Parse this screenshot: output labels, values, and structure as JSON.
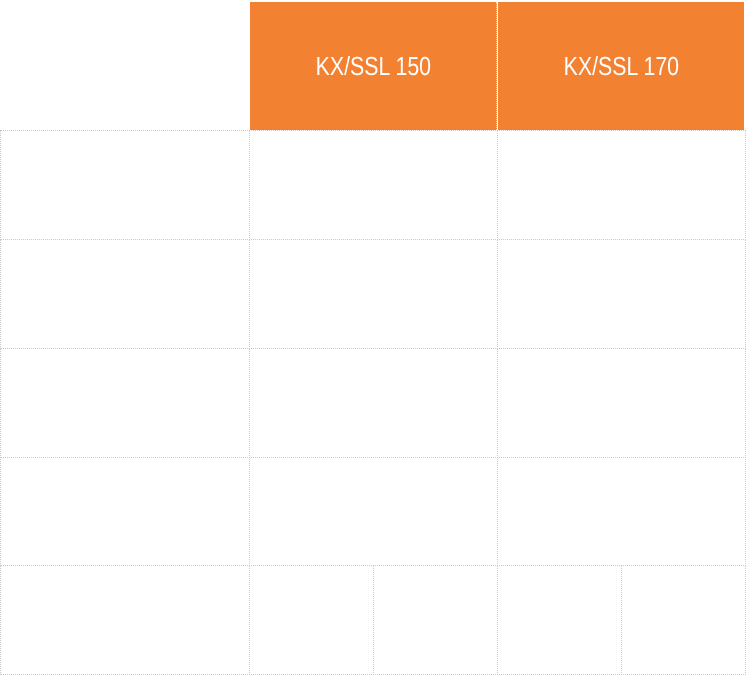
{
  "table": {
    "header_color": "#f38132",
    "columns": [
      {
        "label": ""
      },
      {
        "label": "KX/SSL 150"
      },
      {
        "label": "KX/SSL 170"
      }
    ],
    "rows": [
      [
        "",
        "",
        ""
      ],
      [
        "",
        "",
        ""
      ],
      [
        "",
        "",
        ""
      ],
      [
        "",
        "",
        ""
      ],
      [
        "",
        "",
        "",
        "",
        ""
      ]
    ]
  }
}
